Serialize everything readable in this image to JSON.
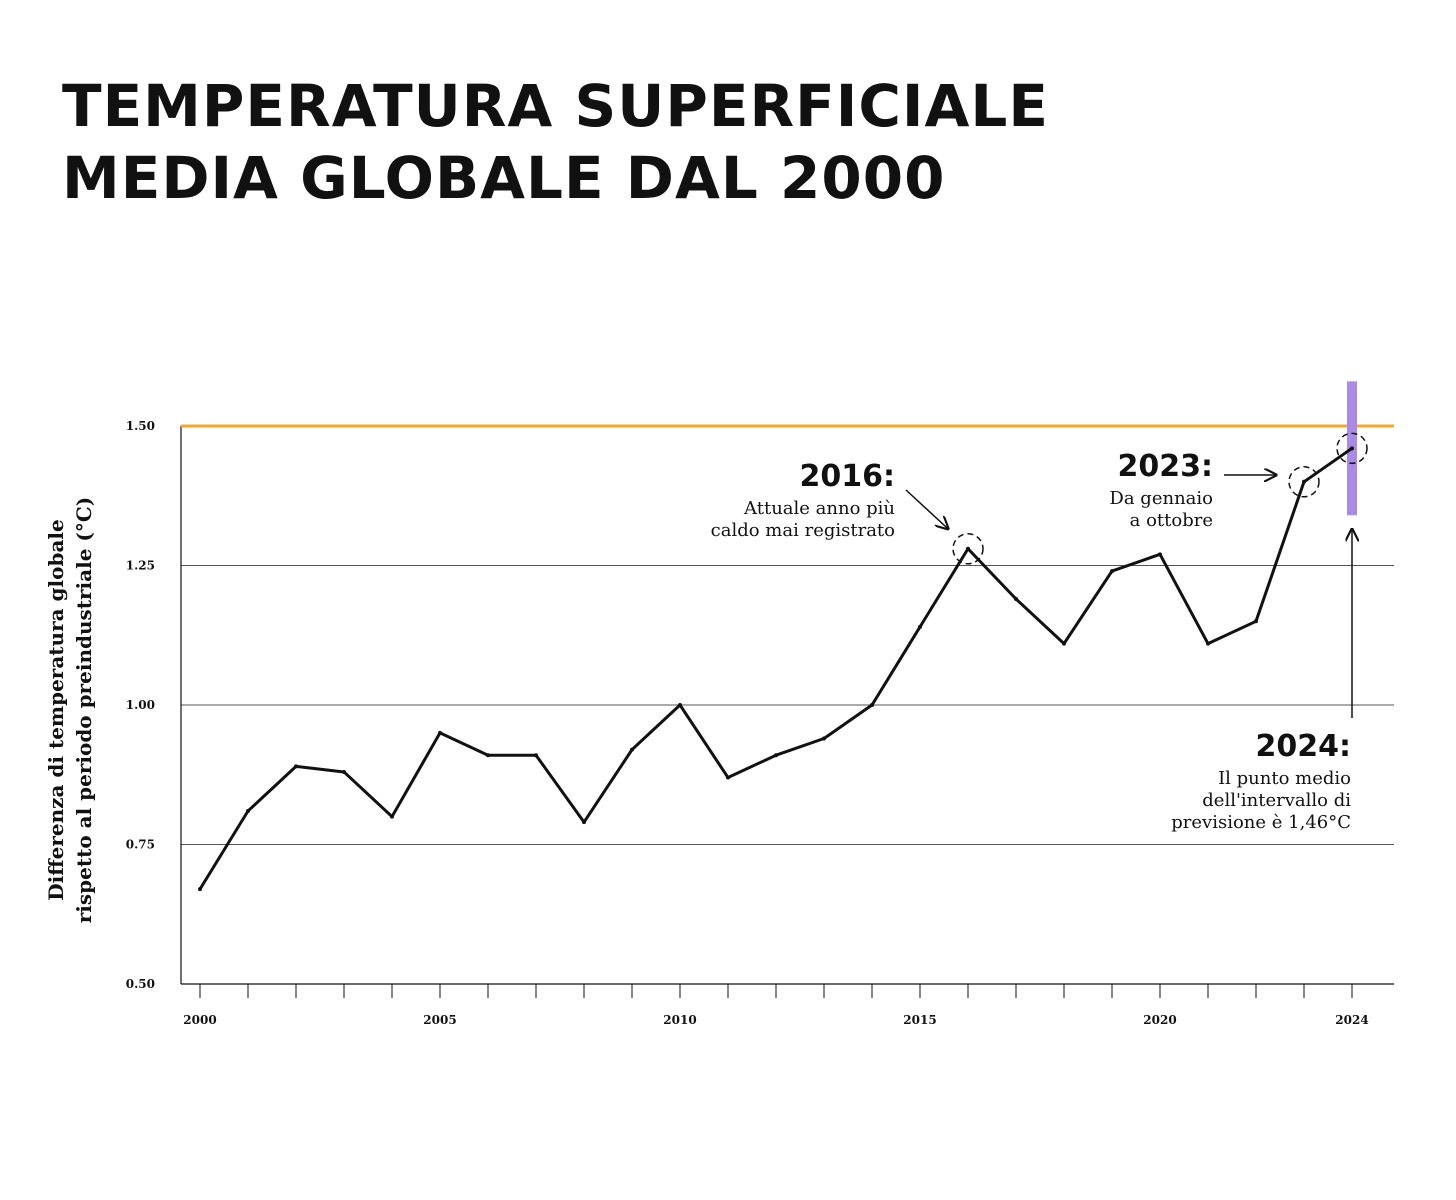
{
  "title": {
    "line1": "TEMPERATURA SUPERFICIALE",
    "line2": "MEDIA GLOBALE DAL 2000"
  },
  "colors": {
    "threshold": "#f0a830",
    "range_bar": "#a98ae6",
    "line": "#111111",
    "grid": "#555555"
  },
  "chart_data": {
    "type": "line",
    "title": "TEMPERATURA SUPERFICIALE MEDIA GLOBALE DAL 2000",
    "ylabel_lines": [
      "Differenza di temperatura globale",
      "rispetto al periodo preindustriale (°C)"
    ],
    "xlabel": "",
    "xlim": [
      2000,
      2024
    ],
    "ylim": [
      0.5,
      1.5
    ],
    "yticks": [
      {
        "value": 0.5,
        "label": "0.50"
      },
      {
        "value": 0.75,
        "label": "0.75"
      },
      {
        "value": 1.0,
        "label": "1.00"
      },
      {
        "value": 1.25,
        "label": "1.25"
      },
      {
        "value": 1.5,
        "label": "1.50"
      }
    ],
    "xticks_labeled": [
      {
        "value": 2000,
        "label": "2000"
      },
      {
        "value": 2005,
        "label": "2005"
      },
      {
        "value": 2010,
        "label": "2010"
      },
      {
        "value": 2015,
        "label": "2015"
      },
      {
        "value": 2020,
        "label": "2020"
      },
      {
        "value": 2024,
        "label": "2024"
      }
    ],
    "grid": true,
    "series": [
      {
        "x": [
          2000,
          2001,
          2002,
          2003,
          2004,
          2005,
          2006,
          2007,
          2008,
          2009,
          2010,
          2011,
          2012,
          2013,
          2014,
          2015,
          2016,
          2017,
          2018,
          2019,
          2020,
          2021,
          2022,
          2023,
          2024
        ],
        "values": [
          0.67,
          0.81,
          0.89,
          0.88,
          0.8,
          0.95,
          0.91,
          0.91,
          0.79,
          0.92,
          1.0,
          0.87,
          0.91,
          0.94,
          1.0,
          1.14,
          1.28,
          1.19,
          1.11,
          1.24,
          1.27,
          1.11,
          1.15,
          1.4,
          1.46
        ]
      }
    ],
    "threshold": {
      "value": 1.5
    },
    "forecast_range": {
      "x": 2024,
      "low": 1.34,
      "high": 1.58
    },
    "annotations": [
      {
        "id": "a2016",
        "x": 2016,
        "y": 1.28,
        "title": "2016:",
        "lines": [
          "Attuale anno più",
          "caldo mai registrato"
        ]
      },
      {
        "id": "a2023",
        "x": 2023,
        "y": 1.4,
        "title": "2023:",
        "lines": [
          "Da gennaio",
          "a ottobre"
        ]
      },
      {
        "id": "a2024",
        "x": 2024,
        "y": 1.46,
        "title": "2024:",
        "lines": [
          "Il punto medio",
          "dell'intervallo di",
          "previsione è 1,46°C"
        ]
      }
    ]
  }
}
